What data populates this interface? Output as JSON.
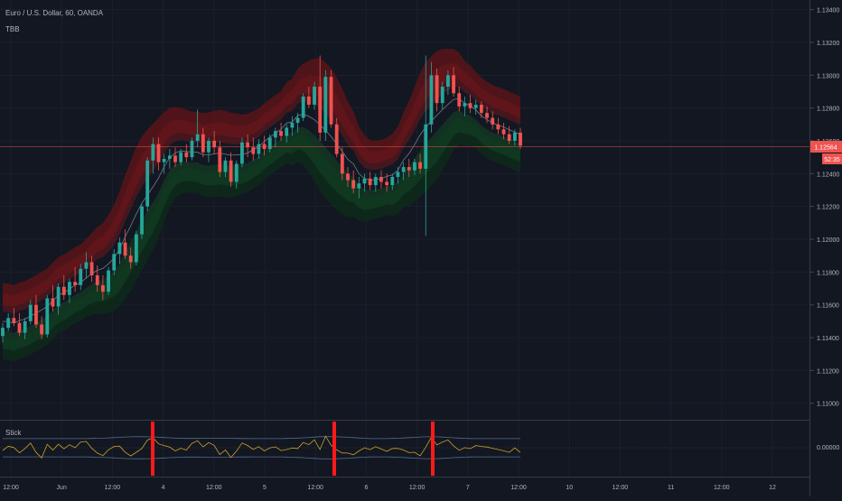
{
  "header": {
    "symbol_title": "Euro / U.S. Dollar, 60, OANDA",
    "indicator_label": "TBB"
  },
  "sub_panel": {
    "label": "Stick",
    "zero_label": "0.00000"
  },
  "price_tag": {
    "price": "1.12564",
    "countdown": "52:35"
  },
  "colors": {
    "background": "#131722",
    "candle_up": "#26a69a",
    "candle_down": "#ef5350",
    "band_upper_outer": "#5a1417",
    "band_upper_mid": "#6e161b",
    "band_upper_inner": "#48131a",
    "band_lower_outer": "#0d2a1a",
    "band_lower_inner": "#123d22",
    "basis_line": "#6d7a8c",
    "price_line": "#ef5350",
    "signal_bar": "#ff1a1a",
    "oscillator": "#c9a227",
    "osc_envelope": "#4f6d8f"
  },
  "chart_data": [
    {
      "type": "candlestick",
      "title": "Euro / U.S. Dollar, 60, OANDA",
      "y_axis_ticks": [
        "1.13400",
        "1.13200",
        "1.13000",
        "1.12800",
        "1.12600",
        "1.12400",
        "1.12200",
        "1.12000",
        "1.11800",
        "1.11600",
        "1.11400",
        "1.11200",
        "1.11000"
      ],
      "ylim": [
        1.1096,
        1.1342
      ],
      "x_axis_ticks": [
        "12:00",
        "Jun",
        "12:00",
        "4",
        "12:00",
        "5",
        "12:00",
        "6",
        "12:00",
        "7",
        "12:00",
        "10",
        "12:00",
        "11",
        "12:00",
        "12"
      ],
      "last_price": 1.12564,
      "ohlc": [
        [
          1.1141,
          1.1149,
          1.1137,
          1.1146
        ],
        [
          1.1146,
          1.1155,
          1.1144,
          1.1152
        ],
        [
          1.1152,
          1.1158,
          1.1147,
          1.1149
        ],
        [
          1.1149,
          1.1155,
          1.1141,
          1.1143
        ],
        [
          1.1143,
          1.1152,
          1.1139,
          1.115
        ],
        [
          1.115,
          1.1163,
          1.1148,
          1.116
        ],
        [
          1.116,
          1.1166,
          1.1146,
          1.1148
        ],
        [
          1.1148,
          1.1153,
          1.1139,
          1.1142
        ],
        [
          1.1142,
          1.1166,
          1.114,
          1.1164
        ],
        [
          1.1164,
          1.1172,
          1.1156,
          1.1159
        ],
        [
          1.1159,
          1.1173,
          1.1154,
          1.1171
        ],
        [
          1.1171,
          1.1178,
          1.1163,
          1.1166
        ],
        [
          1.1166,
          1.1176,
          1.1161,
          1.1174
        ],
        [
          1.1174,
          1.1183,
          1.1168,
          1.1172
        ],
        [
          1.1172,
          1.1185,
          1.1169,
          1.1182
        ],
        [
          1.1182,
          1.1192,
          1.1176,
          1.1186
        ],
        [
          1.1186,
          1.119,
          1.1174,
          1.1178
        ],
        [
          1.1178,
          1.1184,
          1.1168,
          1.1172
        ],
        [
          1.1172,
          1.1178,
          1.1163,
          1.1168
        ],
        [
          1.1168,
          1.1183,
          1.1166,
          1.1181
        ],
        [
          1.1181,
          1.1194,
          1.1178,
          1.1191
        ],
        [
          1.1191,
          1.1201,
          1.1185,
          1.1198
        ],
        [
          1.1198,
          1.1206,
          1.1188,
          1.119
        ],
        [
          1.119,
          1.1195,
          1.1182,
          1.1186
        ],
        [
          1.1186,
          1.1205,
          1.1184,
          1.1203
        ],
        [
          1.1203,
          1.1222,
          1.12,
          1.122
        ],
        [
          1.122,
          1.125,
          1.1217,
          1.1248
        ],
        [
          1.1248,
          1.1262,
          1.124,
          1.1258
        ],
        [
          1.1258,
          1.1262,
          1.1242,
          1.1247
        ],
        [
          1.1247,
          1.1252,
          1.124,
          1.1249
        ],
        [
          1.1249,
          1.1255,
          1.1243,
          1.1251
        ],
        [
          1.1251,
          1.1256,
          1.1244,
          1.1247
        ],
        [
          1.1247,
          1.1255,
          1.1245,
          1.1253
        ],
        [
          1.1253,
          1.1258,
          1.1247,
          1.125
        ],
        [
          1.125,
          1.1262,
          1.1248,
          1.126
        ],
        [
          1.126,
          1.1279,
          1.1256,
          1.1264
        ],
        [
          1.1264,
          1.1268,
          1.125,
          1.1253
        ],
        [
          1.1253,
          1.1262,
          1.1247,
          1.126
        ],
        [
          1.126,
          1.1266,
          1.1252,
          1.1256
        ],
        [
          1.1256,
          1.126,
          1.1238,
          1.1241
        ],
        [
          1.1241,
          1.125,
          1.1238,
          1.1248
        ],
        [
          1.1248,
          1.1253,
          1.1232,
          1.1235
        ],
        [
          1.1235,
          1.1248,
          1.1231,
          1.1246
        ],
        [
          1.1246,
          1.1262,
          1.1244,
          1.1259
        ],
        [
          1.1259,
          1.1264,
          1.125,
          1.1256
        ],
        [
          1.1256,
          1.1262,
          1.1248,
          1.1252
        ],
        [
          1.1252,
          1.1261,
          1.1249,
          1.1258
        ],
        [
          1.1258,
          1.1263,
          1.1251,
          1.1255
        ],
        [
          1.1255,
          1.1264,
          1.1253,
          1.1262
        ],
        [
          1.1262,
          1.1268,
          1.1256,
          1.1266
        ],
        [
          1.1266,
          1.1271,
          1.126,
          1.1263
        ],
        [
          1.1263,
          1.127,
          1.1259,
          1.1268
        ],
        [
          1.1268,
          1.1275,
          1.1263,
          1.1271
        ],
        [
          1.1271,
          1.1277,
          1.1265,
          1.1274
        ],
        [
          1.1274,
          1.1289,
          1.1272,
          1.1287
        ],
        [
          1.1287,
          1.1293,
          1.128,
          1.1282
        ],
        [
          1.1282,
          1.1296,
          1.1279,
          1.1293
        ],
        [
          1.1293,
          1.1312,
          1.126,
          1.1265
        ],
        [
          1.1265,
          1.1303,
          1.126,
          1.1299
        ],
        [
          1.1299,
          1.1303,
          1.1268,
          1.127
        ],
        [
          1.127,
          1.1274,
          1.125,
          1.1252
        ],
        [
          1.1252,
          1.1256,
          1.1236,
          1.124
        ],
        [
          1.124,
          1.1244,
          1.1232,
          1.1236
        ],
        [
          1.1236,
          1.1242,
          1.1228,
          1.1231
        ],
        [
          1.1231,
          1.1238,
          1.1225,
          1.1234
        ],
        [
          1.1234,
          1.124,
          1.1229,
          1.1237
        ],
        [
          1.1237,
          1.1241,
          1.123,
          1.1233
        ],
        [
          1.1233,
          1.124,
          1.1229,
          1.1238
        ],
        [
          1.1238,
          1.1242,
          1.1231,
          1.1235
        ],
        [
          1.1235,
          1.124,
          1.1229,
          1.1233
        ],
        [
          1.1233,
          1.124,
          1.123,
          1.1238
        ],
        [
          1.1238,
          1.1244,
          1.1234,
          1.1241
        ],
        [
          1.1241,
          1.1247,
          1.1236,
          1.1244
        ],
        [
          1.1244,
          1.1249,
          1.1238,
          1.1242
        ],
        [
          1.1242,
          1.1249,
          1.1239,
          1.1247
        ],
        [
          1.1247,
          1.1252,
          1.124,
          1.1243
        ],
        [
          1.1243,
          1.1312,
          1.1202,
          1.127
        ],
        [
          1.127,
          1.1308,
          1.1265,
          1.13
        ],
        [
          1.13,
          1.1304,
          1.1278,
          1.1283
        ],
        [
          1.1283,
          1.1296,
          1.1279,
          1.1293
        ],
        [
          1.1293,
          1.1303,
          1.1288,
          1.13
        ],
        [
          1.13,
          1.1305,
          1.1287,
          1.1289
        ],
        [
          1.1289,
          1.1293,
          1.1278,
          1.1281
        ],
        [
          1.1281,
          1.1287,
          1.1275,
          1.1283
        ],
        [
          1.1283,
          1.1288,
          1.1277,
          1.128
        ],
        [
          1.128,
          1.1285,
          1.1276,
          1.1282
        ],
        [
          1.1282,
          1.1284,
          1.1274,
          1.1277
        ],
        [
          1.1277,
          1.1281,
          1.1271,
          1.1274
        ],
        [
          1.1274,
          1.1278,
          1.1267,
          1.127
        ],
        [
          1.127,
          1.1274,
          1.1264,
          1.1267
        ],
        [
          1.1267,
          1.1271,
          1.1261,
          1.1264
        ],
        [
          1.1264,
          1.1269,
          1.1258,
          1.126
        ],
        [
          1.126,
          1.1267,
          1.1257,
          1.1265
        ],
        [
          1.1265,
          1.1268,
          1.1255,
          1.1257
        ]
      ]
    },
    {
      "type": "line",
      "title": "Stick",
      "zero_label": "0.00000",
      "signal_bars": [
        "4",
        "6",
        "7"
      ]
    }
  ]
}
